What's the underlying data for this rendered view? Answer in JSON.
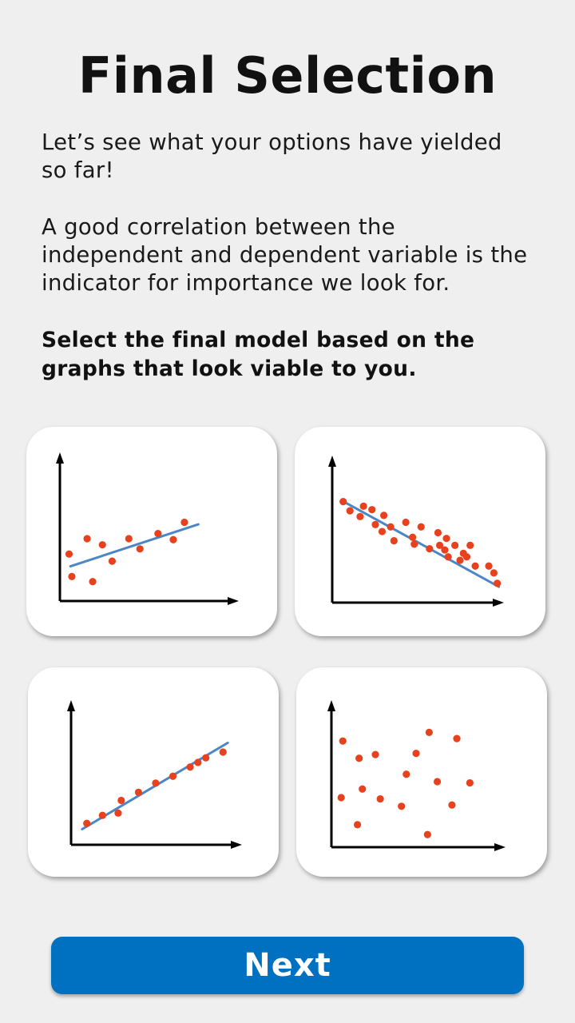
{
  "page": {
    "title": "Final Selection",
    "intro": "Let’s see what your options have yielded so far!",
    "explanation": "A good correlation between the independent and dependent variable is the indicator for importance we look for.",
    "instruction": "Select the final model based on the graphs that look viable to you."
  },
  "colors": {
    "background": "#efefef",
    "point": "#e8411e",
    "trend_line": "#4a86c8",
    "axis": "#000000",
    "button": "#0070c0"
  },
  "chart_data": [
    {
      "type": "scatter",
      "title": "",
      "xlabel": "",
      "ylabel": "",
      "xlim": [
        0,
        10
      ],
      "ylim": [
        0,
        10
      ],
      "trend_line": [
        [
          0.3,
          2.3
        ],
        [
          9.5,
          6.4
        ]
      ],
      "points": [
        [
          0.2,
          3.5
        ],
        [
          0.4,
          1.3
        ],
        [
          1.5,
          5.0
        ],
        [
          1.9,
          0.8
        ],
        [
          2.6,
          4.4
        ],
        [
          3.3,
          2.8
        ],
        [
          4.5,
          5.0
        ],
        [
          5.3,
          4.0
        ],
        [
          6.6,
          5.5
        ],
        [
          7.7,
          4.9
        ],
        [
          8.5,
          6.6
        ]
      ]
    },
    {
      "type": "scatter",
      "title": "",
      "xlabel": "",
      "ylabel": "",
      "xlim": [
        0,
        10
      ],
      "ylim": [
        0,
        10
      ],
      "trend_line": [
        [
          0.5,
          8.6
        ],
        [
          9.8,
          1.1
        ]
      ],
      "points": [
        [
          0.6,
          8.5
        ],
        [
          1.0,
          7.7
        ],
        [
          1.6,
          7.2
        ],
        [
          1.8,
          8.1
        ],
        [
          2.3,
          7.8
        ],
        [
          2.5,
          6.5
        ],
        [
          2.9,
          5.9
        ],
        [
          3.0,
          7.3
        ],
        [
          3.4,
          6.3
        ],
        [
          3.6,
          5.1
        ],
        [
          4.3,
          6.7
        ],
        [
          4.7,
          5.4
        ],
        [
          4.8,
          4.8
        ],
        [
          5.2,
          6.3
        ],
        [
          5.7,
          4.4
        ],
        [
          6.2,
          5.8
        ],
        [
          6.3,
          4.7
        ],
        [
          6.6,
          4.3
        ],
        [
          6.7,
          5.3
        ],
        [
          6.8,
          3.7
        ],
        [
          7.2,
          4.7
        ],
        [
          7.5,
          3.4
        ],
        [
          7.7,
          4.0
        ],
        [
          8.1,
          4.7
        ],
        [
          7.9,
          3.7
        ],
        [
          8.4,
          2.9
        ],
        [
          9.2,
          2.9
        ],
        [
          9.5,
          2.3
        ],
        [
          9.7,
          1.4
        ]
      ]
    },
    {
      "type": "scatter",
      "title": "",
      "xlabel": "",
      "ylabel": "",
      "xlim": [
        0,
        10
      ],
      "ylim": [
        0,
        10
      ],
      "trend_line": [
        [
          0.4,
          0.8
        ],
        [
          9.7,
          8.3
        ]
      ],
      "points": [
        [
          0.7,
          1.3
        ],
        [
          1.7,
          2.0
        ],
        [
          2.7,
          2.2
        ],
        [
          2.9,
          3.3
        ],
        [
          4.0,
          4.0
        ],
        [
          5.1,
          4.8
        ],
        [
          6.2,
          5.4
        ],
        [
          7.3,
          6.2
        ],
        [
          7.8,
          6.6
        ],
        [
          8.3,
          7.0
        ],
        [
          9.4,
          7.5
        ]
      ]
    },
    {
      "type": "scatter",
      "title": "",
      "xlabel": "",
      "ylabel": "",
      "xlim": [
        0,
        10
      ],
      "ylim": [
        0,
        10
      ],
      "points": [
        [
          0.6,
          8.3
        ],
        [
          0.5,
          3.7
        ],
        [
          1.5,
          1.5
        ],
        [
          1.6,
          6.9
        ],
        [
          1.8,
          4.4
        ],
        [
          2.6,
          7.2
        ],
        [
          2.9,
          3.6
        ],
        [
          4.2,
          3.0
        ],
        [
          4.5,
          5.6
        ],
        [
          5.1,
          7.3
        ],
        [
          5.8,
          0.7
        ],
        [
          5.9,
          9.0
        ],
        [
          6.4,
          5.0
        ],
        [
          7.3,
          3.1
        ],
        [
          7.6,
          8.5
        ],
        [
          8.4,
          4.9
        ]
      ]
    }
  ],
  "next_button": {
    "label": "Next"
  }
}
